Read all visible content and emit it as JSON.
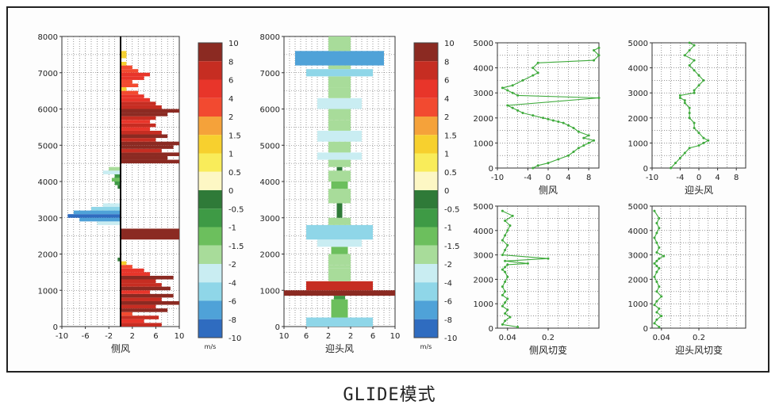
{
  "caption": "GLIDE模式",
  "colorbar": {
    "unit": "m/s",
    "labels": [
      "10",
      "8",
      "6",
      "4",
      "2",
      "1.5",
      "1",
      "0.5",
      "0",
      "-0.5",
      "-1",
      "-1.5",
      "-2",
      "-4",
      "-6",
      "-8",
      "-10"
    ],
    "colors": [
      "#8b2a22",
      "#c62d22",
      "#e8352a",
      "#f24a30",
      "#f5a23a",
      "#f7d02e",
      "#f9ec5a",
      "#fdf7c4",
      "#2f7a38",
      "#3e9a45",
      "#6cbf5d",
      "#a8dc9a",
      "#c9edf2",
      "#8fd6e8",
      "#4fa2d8",
      "#2f6cc0",
      "#2a3c9a"
    ]
  },
  "chart_data": [
    {
      "type": "bar",
      "orientation": "horizontal",
      "xlabel": "侧风",
      "xlim": [
        -10,
        10
      ],
      "ylim": [
        0,
        8000
      ],
      "xticks": [
        -10,
        -6,
        -2,
        2,
        6,
        10
      ],
      "xtick_labels": [
        "-10",
        "-6",
        "-2",
        "2",
        "6",
        "10"
      ],
      "yticks": [
        0,
        1000,
        2000,
        3000,
        4000,
        5000,
        6000,
        7000,
        8000
      ],
      "grid": true,
      "bars": [
        {
          "y": 0,
          "h": 100,
          "v": 7
        },
        {
          "y": 100,
          "h": 100,
          "v": 4
        },
        {
          "y": 200,
          "h": 100,
          "v": 6.5
        },
        {
          "y": 300,
          "h": 100,
          "v": 2
        },
        {
          "y": 400,
          "h": 100,
          "v": 8
        },
        {
          "y": 500,
          "h": 100,
          "v": 6
        },
        {
          "y": 600,
          "h": 100,
          "v": 10
        },
        {
          "y": 700,
          "h": 100,
          "v": 7
        },
        {
          "y": 800,
          "h": 100,
          "v": 9
        },
        {
          "y": 900,
          "h": 100,
          "v": 5
        },
        {
          "y": 1000,
          "h": 100,
          "v": 8.5
        },
        {
          "y": 1100,
          "h": 100,
          "v": 7
        },
        {
          "y": 1200,
          "h": 100,
          "v": 6
        },
        {
          "y": 1300,
          "h": 100,
          "v": 9
        },
        {
          "y": 1400,
          "h": 100,
          "v": 5
        },
        {
          "y": 1500,
          "h": 100,
          "v": 4
        },
        {
          "y": 1600,
          "h": 100,
          "v": 2
        },
        {
          "y": 1700,
          "h": 100,
          "v": 1
        },
        {
          "y": 1800,
          "h": 100,
          "v": -0.5
        },
        {
          "y": 2400,
          "h": 300,
          "v": 10
        },
        {
          "y": 2800,
          "h": 100,
          "v": -4
        },
        {
          "y": 2900,
          "h": 100,
          "v": -7
        },
        {
          "y": 3000,
          "h": 100,
          "v": -9
        },
        {
          "y": 3100,
          "h": 100,
          "v": -8
        },
        {
          "y": 3200,
          "h": 100,
          "v": -5
        },
        {
          "y": 3300,
          "h": 100,
          "v": -3
        },
        {
          "y": 3800,
          "h": 100,
          "v": -0.5
        },
        {
          "y": 3900,
          "h": 100,
          "v": -1
        },
        {
          "y": 4000,
          "h": 100,
          "v": -1.5
        },
        {
          "y": 4100,
          "h": 100,
          "v": -1
        },
        {
          "y": 4200,
          "h": 100,
          "v": -3
        },
        {
          "y": 4300,
          "h": 100,
          "v": -2
        },
        {
          "y": 4500,
          "h": 100,
          "v": 10
        },
        {
          "y": 4600,
          "h": 100,
          "v": 8
        },
        {
          "y": 4700,
          "h": 100,
          "v": 10
        },
        {
          "y": 4800,
          "h": 100,
          "v": 7
        },
        {
          "y": 4900,
          "h": 100,
          "v": 9
        },
        {
          "y": 5000,
          "h": 100,
          "v": 10
        },
        {
          "y": 5100,
          "h": 100,
          "v": 6
        },
        {
          "y": 5200,
          "h": 100,
          "v": 8
        },
        {
          "y": 5300,
          "h": 100,
          "v": 7
        },
        {
          "y": 5400,
          "h": 100,
          "v": 5
        },
        {
          "y": 5500,
          "h": 100,
          "v": 6
        },
        {
          "y": 5600,
          "h": 100,
          "v": 5
        },
        {
          "y": 5700,
          "h": 100,
          "v": 6
        },
        {
          "y": 5800,
          "h": 100,
          "v": 8
        },
        {
          "y": 5900,
          "h": 100,
          "v": 10
        },
        {
          "y": 6000,
          "h": 100,
          "v": 7
        },
        {
          "y": 6100,
          "h": 100,
          "v": 6
        },
        {
          "y": 6200,
          "h": 100,
          "v": 5
        },
        {
          "y": 6300,
          "h": 100,
          "v": 4
        },
        {
          "y": 6400,
          "h": 100,
          "v": 3
        },
        {
          "y": 6500,
          "h": 100,
          "v": 1
        },
        {
          "y": 6600,
          "h": 100,
          "v": 3
        },
        {
          "y": 6700,
          "h": 100,
          "v": 2
        },
        {
          "y": 6800,
          "h": 100,
          "v": 4
        },
        {
          "y": 6900,
          "h": 100,
          "v": 5
        },
        {
          "y": 7000,
          "h": 100,
          "v": 3
        },
        {
          "y": 7100,
          "h": 100,
          "v": 2
        },
        {
          "y": 7200,
          "h": 100,
          "v": 1
        },
        {
          "y": 7400,
          "h": 100,
          "v": 1
        },
        {
          "y": 7500,
          "h": 100,
          "v": 1
        }
      ]
    },
    {
      "type": "bar",
      "orientation": "symmetric-horizontal",
      "xlabel": "迎头风",
      "xlim": [
        -10,
        10
      ],
      "ylim": [
        0,
        8000
      ],
      "xticks": [
        -10,
        -6,
        -2,
        2,
        6,
        10
      ],
      "xtick_labels": [
        "10",
        "6",
        "2",
        "2",
        "6",
        "10"
      ],
      "yticks": [
        0,
        1000,
        2000,
        3000,
        4000,
        5000,
        6000,
        7000,
        8000
      ],
      "grid": true,
      "bars": [
        {
          "y": 0,
          "h": 250,
          "v": -6
        },
        {
          "y": 250,
          "h": 500,
          "v": -1.5
        },
        {
          "y": 750,
          "h": 100,
          "v": -1
        },
        {
          "y": 850,
          "h": 150,
          "v": 10
        },
        {
          "y": 1000,
          "h": 250,
          "v": 6
        },
        {
          "y": 1250,
          "h": 350,
          "v": -2
        },
        {
          "y": 1600,
          "h": 100,
          "v": -2
        },
        {
          "y": 1700,
          "h": 300,
          "v": -2
        },
        {
          "y": 2000,
          "h": 200,
          "v": -1.5
        },
        {
          "y": 2200,
          "h": 200,
          "v": -4
        },
        {
          "y": 2400,
          "h": 400,
          "v": -6
        },
        {
          "y": 2800,
          "h": 200,
          "v": -2
        },
        {
          "y": 3000,
          "h": 400,
          "v": -0.5
        },
        {
          "y": 3400,
          "h": 400,
          "v": -2
        },
        {
          "y": 3800,
          "h": 200,
          "v": -1.5
        },
        {
          "y": 4000,
          "h": 300,
          "v": -2
        },
        {
          "y": 4300,
          "h": 100,
          "v": -0.5
        },
        {
          "y": 4400,
          "h": 200,
          "v": -2
        },
        {
          "y": 4600,
          "h": 200,
          "v": -4
        },
        {
          "y": 4800,
          "h": 300,
          "v": -2
        },
        {
          "y": 5100,
          "h": 300,
          "v": -4
        },
        {
          "y": 5400,
          "h": 300,
          "v": -2
        },
        {
          "y": 5700,
          "h": 300,
          "v": -2
        },
        {
          "y": 6000,
          "h": 300,
          "v": -4
        },
        {
          "y": 6300,
          "h": 300,
          "v": -2
        },
        {
          "y": 6600,
          "h": 300,
          "v": -2
        },
        {
          "y": 6900,
          "h": 200,
          "v": -6
        },
        {
          "y": 7100,
          "h": 100,
          "v": -2
        },
        {
          "y": 7200,
          "h": 400,
          "v": -8
        },
        {
          "y": 7600,
          "h": 400,
          "v": -2
        }
      ]
    },
    {
      "type": "line",
      "xlabel": "侧风",
      "xlim": [
        -10,
        10
      ],
      "ylim": [
        0,
        5000
      ],
      "xticks": [
        -10,
        -4,
        0,
        4,
        8
      ],
      "yticks": [
        0,
        1000,
        2000,
        3000,
        4000,
        5000
      ],
      "grid": true,
      "color": "#3faa3c",
      "x": [
        -3,
        -2,
        0,
        2,
        4,
        5,
        6,
        7,
        8,
        9,
        7,
        8,
        6,
        5,
        4,
        3,
        2,
        1,
        0,
        -1,
        -3,
        -5,
        -6,
        -7,
        -8,
        10,
        -6,
        -7,
        -8,
        -9,
        -7,
        -5,
        -3,
        -2,
        -3,
        -2,
        9,
        10,
        9,
        10
      ],
      "y": [
        0,
        100,
        200,
        350,
        500,
        650,
        800,
        900,
        1000,
        1100,
        1200,
        1300,
        1450,
        1600,
        1700,
        1800,
        1850,
        1900,
        1950,
        2000,
        2100,
        2200,
        2300,
        2400,
        2500,
        2800,
        2900,
        3000,
        3100,
        3200,
        3300,
        3500,
        3700,
        3800,
        4000,
        4200,
        4300,
        4500,
        4700,
        4800
      ]
    },
    {
      "type": "line",
      "xlabel": "迎头风",
      "xlim": [
        -10,
        10
      ],
      "ylim": [
        0,
        5000
      ],
      "xticks": [
        -10,
        -4,
        0,
        4,
        8
      ],
      "yticks": [
        0,
        1000,
        2000,
        3000,
        4000,
        5000
      ],
      "grid": true,
      "color": "#3faa3c",
      "x": [
        -6,
        -5,
        -4,
        -3,
        -2,
        0,
        1,
        2,
        1,
        0,
        -1,
        -1,
        -2,
        -2,
        -2,
        -3,
        -3,
        -4,
        -4,
        -1,
        -1,
        0,
        1,
        0,
        -1,
        -2,
        -1,
        -3,
        -2,
        -1,
        -2
      ],
      "y": [
        0,
        200,
        400,
        600,
        800,
        900,
        1000,
        1100,
        1200,
        1400,
        1600,
        1800,
        2000,
        2200,
        2400,
        2600,
        2700,
        2800,
        2900,
        3000,
        3100,
        3300,
        3500,
        3700,
        3900,
        4100,
        4300,
        4500,
        4700,
        4900,
        5000
      ]
    },
    {
      "type": "line",
      "xlabel": "侧风切变",
      "xlim": [
        0,
        0.4
      ],
      "ylim": [
        0,
        5000
      ],
      "xticks": [
        0.04,
        0.2
      ],
      "yticks": [
        0,
        1000,
        2000,
        3000,
        4000,
        5000
      ],
      "grid": true,
      "color": "#3faa3c",
      "x": [
        0.08,
        0.02,
        0.03,
        0.05,
        0.03,
        0.04,
        0.02,
        0.03,
        0.04,
        0.02,
        0.03,
        0.02,
        0.03,
        0.04,
        0.03,
        0.02,
        0.03,
        0.04,
        0.12,
        0.03,
        0.2,
        0.02,
        0.03,
        0.04,
        0.02,
        0.03,
        0.04,
        0.05,
        0.03,
        0.06,
        0.02
      ],
      "y": [
        50,
        150,
        300,
        450,
        600,
        750,
        900,
        1050,
        1200,
        1350,
        1500,
        1700,
        1900,
        2100,
        2300,
        2400,
        2500,
        2600,
        2650,
        2750,
        2850,
        3000,
        3200,
        3400,
        3600,
        3800,
        4000,
        4200,
        4400,
        4600,
        4800
      ]
    },
    {
      "type": "line",
      "xlabel": "迎头风切变",
      "xlim": [
        0,
        0.4
      ],
      "ylim": [
        0,
        5000
      ],
      "xticks": [
        0.04,
        0.2
      ],
      "yticks": [
        0,
        1000,
        2000,
        3000,
        4000,
        5000
      ],
      "grid": true,
      "color": "#3faa3c",
      "x": [
        0.03,
        0.01,
        0.02,
        0.04,
        0.02,
        0.03,
        0.01,
        0.02,
        0.04,
        0.02,
        0.03,
        0.02,
        0.01,
        0.02,
        0.03,
        0.02,
        0.01,
        0.02,
        0.03,
        0.05,
        0.02,
        0.03,
        0.02,
        0.01,
        0.02,
        0.03,
        0.02,
        0.03,
        0.01
      ],
      "y": [
        50,
        200,
        350,
        500,
        650,
        800,
        950,
        1100,
        1300,
        1500,
        1700,
        1900,
        2100,
        2300,
        2450,
        2550,
        2650,
        2750,
        2850,
        2950,
        3100,
        3300,
        3500,
        3700,
        3900,
        4100,
        4300,
        4500,
        4800
      ]
    }
  ]
}
